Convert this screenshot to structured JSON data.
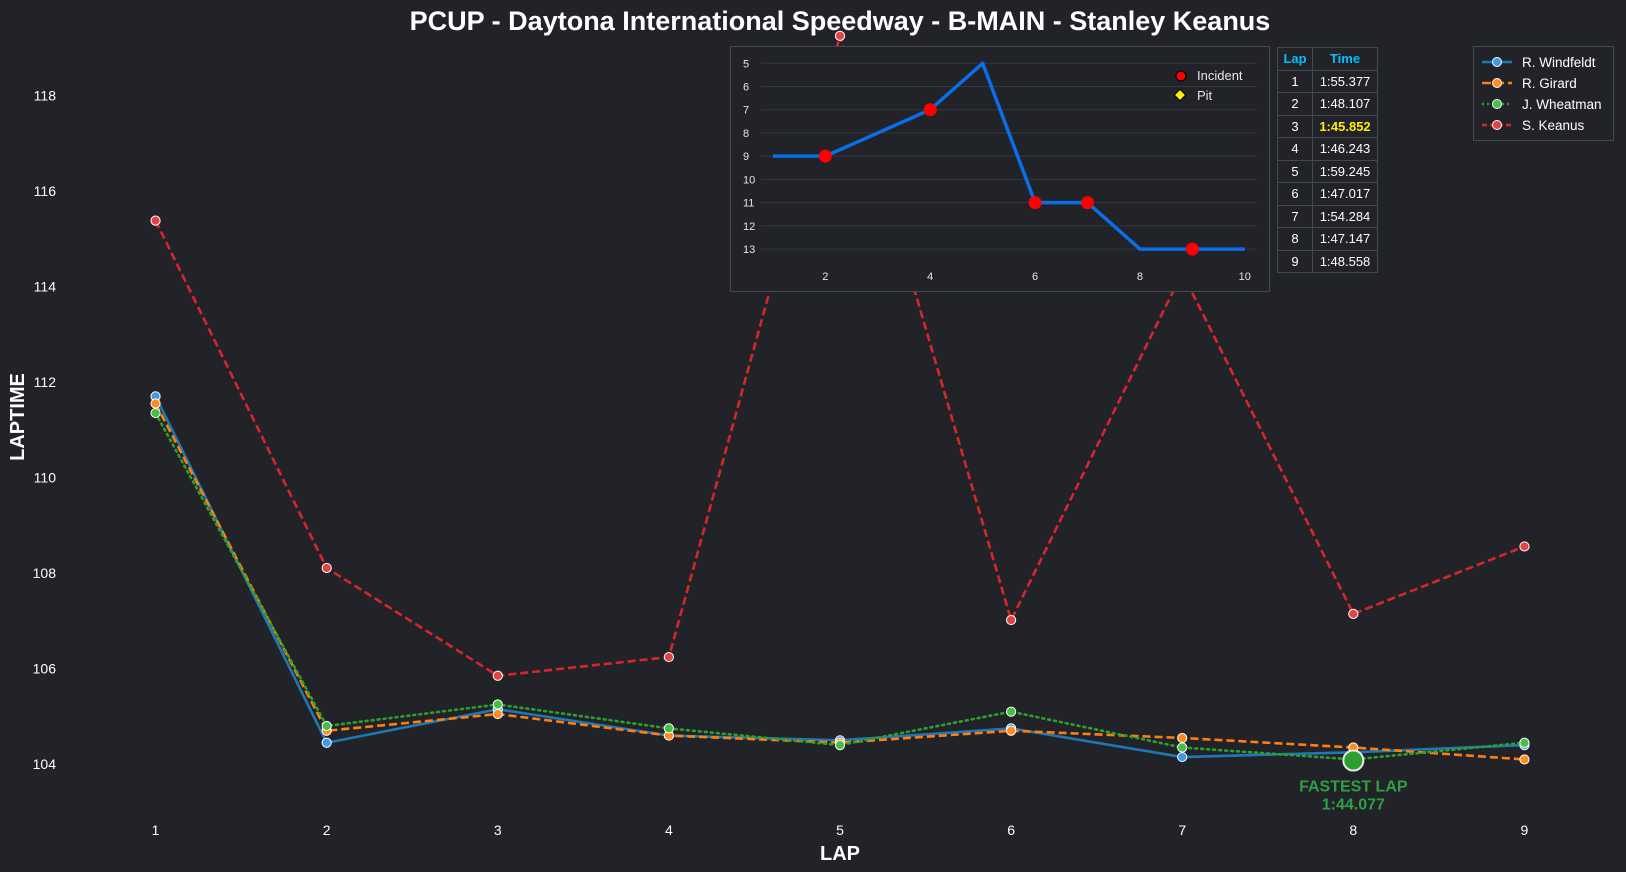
{
  "chart_data": {
    "type": "line",
    "title": "PCUP - Daytona International Speedway - B-MAIN - Stanley Keanus",
    "xlabel": "LAP",
    "ylabel": "LAPTIME",
    "x": [
      1,
      2,
      3,
      4,
      5,
      6,
      7,
      8,
      9
    ],
    "xlim": [
      0.5,
      9.5
    ],
    "ylim": [
      103.0,
      119.2
    ],
    "yticks": [
      104,
      106,
      108,
      110,
      112,
      114,
      116,
      118
    ],
    "grid": false,
    "legend_position": "top-right",
    "series": [
      {
        "name": "R. Windfeldt",
        "color": "#1f77b4",
        "marker_color": "#3d9be9",
        "dash": "solid",
        "values": [
          111.7,
          104.45,
          105.15,
          104.6,
          104.5,
          104.75,
          104.15,
          104.25,
          104.4
        ]
      },
      {
        "name": "R. Girard",
        "color": "#ff7f0e",
        "marker_color": "#ff8c1f",
        "dash": "dashed",
        "values": [
          111.55,
          104.7,
          105.05,
          104.6,
          104.45,
          104.7,
          104.55,
          104.35,
          104.1
        ]
      },
      {
        "name": "J. Wheatman",
        "color": "#2ca02c",
        "marker_color": "#44c144",
        "dash": "dotted",
        "values": [
          111.35,
          104.8,
          105.25,
          104.75,
          104.4,
          105.1,
          104.35,
          104.1,
          104.45
        ]
      },
      {
        "name": "S. Keanus",
        "color": "#d62728",
        "marker_color": "#e04545",
        "dash": "dashed",
        "values": [
          115.377,
          108.107,
          105.852,
          106.243,
          119.245,
          107.017,
          114.284,
          107.147,
          108.558
        ]
      }
    ],
    "annotations": [
      {
        "text": "FASTEST LAP",
        "value": "1:44.077",
        "x": 8,
        "y": 104.077,
        "color": "#2ea043"
      }
    ]
  },
  "position_chart": {
    "type": "line",
    "x": [
      1,
      2,
      3,
      4,
      5,
      6,
      7,
      8,
      9,
      10
    ],
    "values": [
      9,
      9,
      8,
      7,
      5,
      11,
      11,
      13,
      13,
      13
    ],
    "color": "#0a6ee6",
    "xlim": [
      0.2,
      10.5
    ],
    "ylim": [
      4.3,
      13.6
    ],
    "yticks": [
      5,
      6,
      7,
      8,
      9,
      10,
      11,
      12,
      13
    ],
    "xticks": [
      2,
      4,
      6,
      8,
      10
    ],
    "y_inverted": true,
    "incidents": [
      2,
      4,
      6,
      7,
      9
    ],
    "legend": [
      {
        "label": "Incident",
        "marker": "circle",
        "color": "#ff0000"
      },
      {
        "label": "Pit",
        "marker": "diamond",
        "color": "#ffee00"
      }
    ]
  },
  "lap_table": {
    "headers": [
      "Lap",
      "Time"
    ],
    "best_lap": 3,
    "rows": [
      {
        "lap": "1",
        "time": "1:55.377"
      },
      {
        "lap": "2",
        "time": "1:48.107"
      },
      {
        "lap": "3",
        "time": "1:45.852"
      },
      {
        "lap": "4",
        "time": "1:46.243"
      },
      {
        "lap": "5",
        "time": "1:59.245"
      },
      {
        "lap": "6",
        "time": "1:47.017"
      },
      {
        "lap": "7",
        "time": "1:54.284"
      },
      {
        "lap": "8",
        "time": "1:47.147"
      },
      {
        "lap": "9",
        "time": "1:48.558"
      }
    ]
  },
  "legend": {
    "items": [
      "R. Windfeldt",
      "R. Girard",
      "J. Wheatman",
      "S. Keanus"
    ]
  }
}
